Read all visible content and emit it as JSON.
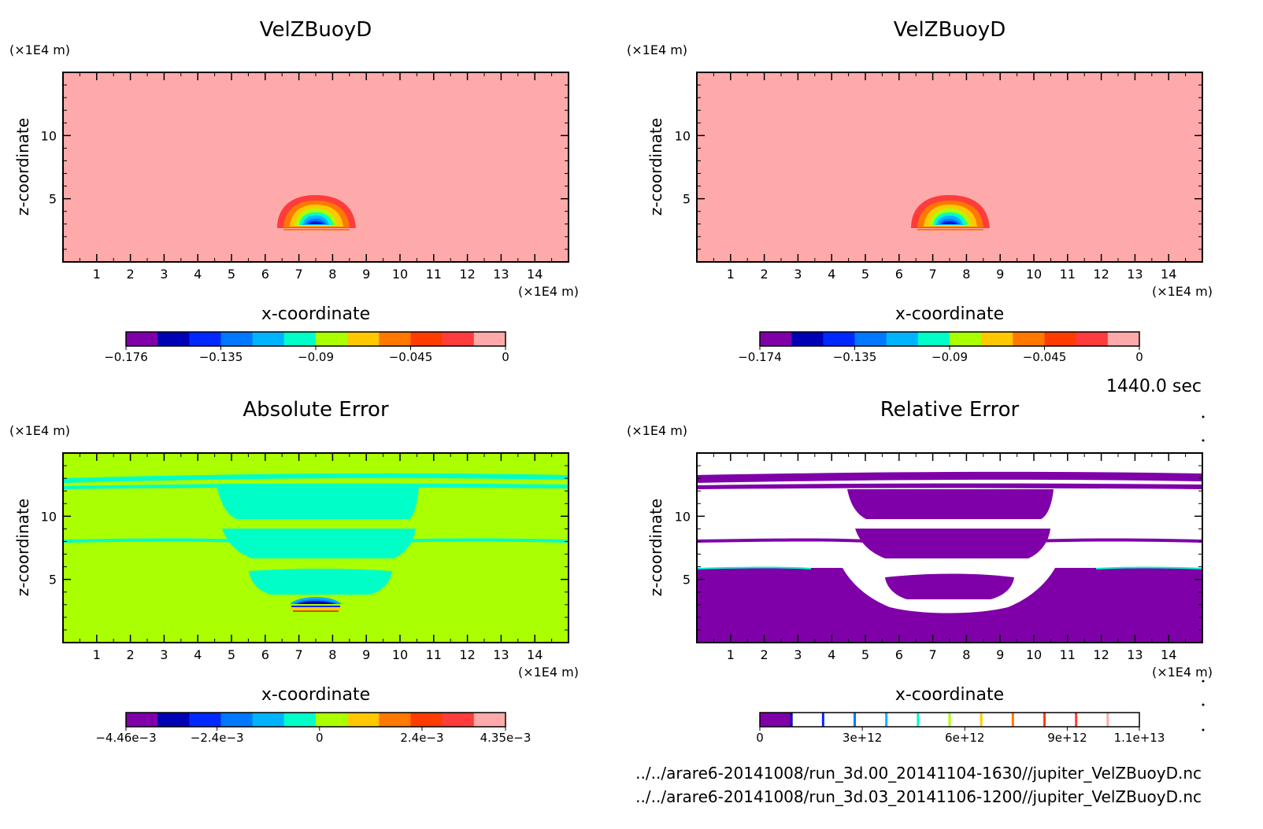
{
  "chart_data": [
    {
      "type": "heatmap",
      "title": "VelZBuoyD",
      "xlabel": "x-coordinate",
      "ylabel": "z-coordinate",
      "x_unit": "(×1E4 m)",
      "y_unit": "(×1E4 m)",
      "xticks": [
        "1",
        "2",
        "3",
        "4",
        "5",
        "6",
        "7",
        "8",
        "9",
        "10",
        "11",
        "12",
        "13",
        "14"
      ],
      "yticks": [
        "5",
        "10"
      ],
      "xlim": [
        0,
        15
      ],
      "ylim": [
        0,
        15
      ],
      "colorbar": {
        "colors": [
          "#7f00a8",
          "#0000b4",
          "#0028ff",
          "#0078ff",
          "#00b4ff",
          "#00ffc8",
          "#aaff00",
          "#ffc800",
          "#ff7800",
          "#ff3c00",
          "#ff3c3c",
          "#ffaaaa"
        ],
        "labels": [
          "−0.176",
          "−0.135",
          "−0.09",
          "−0.045",
          "0"
        ],
        "label_positions": [
          0,
          0.25,
          0.5,
          0.75,
          1.0
        ]
      }
    },
    {
      "type": "heatmap",
      "title": "VelZBuoyD",
      "xlabel": "x-coordinate",
      "ylabel": "z-coordinate",
      "x_unit": "(×1E4 m)",
      "y_unit": "(×1E4 m)",
      "xticks": [
        "1",
        "2",
        "3",
        "4",
        "5",
        "6",
        "7",
        "8",
        "9",
        "10",
        "11",
        "12",
        "13",
        "14"
      ],
      "yticks": [
        "5",
        "10"
      ],
      "xlim": [
        0,
        15
      ],
      "ylim": [
        0,
        15
      ],
      "colorbar": {
        "colors": [
          "#7f00a8",
          "#0000b4",
          "#0028ff",
          "#0078ff",
          "#00b4ff",
          "#00ffc8",
          "#aaff00",
          "#ffc800",
          "#ff7800",
          "#ff3c00",
          "#ff3c3c",
          "#ffaaaa"
        ],
        "labels": [
          "−0.174",
          "−0.135",
          "−0.09",
          "−0.045",
          "0"
        ],
        "label_positions": [
          0,
          0.25,
          0.5,
          0.75,
          1.0
        ]
      }
    },
    {
      "type": "heatmap",
      "title": "Absolute Error",
      "xlabel": "x-coordinate",
      "ylabel": "z-coordinate",
      "x_unit": "(×1E4 m)",
      "y_unit": "(×1E4 m)",
      "xticks": [
        "1",
        "2",
        "3",
        "4",
        "5",
        "6",
        "7",
        "8",
        "9",
        "10",
        "11",
        "12",
        "13",
        "14"
      ],
      "yticks": [
        "5",
        "10"
      ],
      "xlim": [
        0,
        15
      ],
      "ylim": [
        0,
        15
      ],
      "colorbar": {
        "colors": [
          "#7f00a8",
          "#0000b4",
          "#0028ff",
          "#0078ff",
          "#00b4ff",
          "#00ffc8",
          "#aaff00",
          "#ffc800",
          "#ff7800",
          "#ff3c00",
          "#ff3c3c",
          "#ffaaaa"
        ],
        "labels": [
          "−4.46e−3",
          "−2.4e−3",
          "0",
          "2.4e−3",
          "4.35e−3"
        ],
        "label_positions": [
          0,
          0.24,
          0.51,
          0.78,
          1.0
        ]
      }
    },
    {
      "type": "heatmap",
      "title": "Relative Error",
      "xlabel": "x-coordinate",
      "ylabel": "z-coordinate",
      "x_unit": "(×1E4 m)",
      "y_unit": "(×1E4 m)",
      "xticks": [
        "1",
        "2",
        "3",
        "4",
        "5",
        "6",
        "7",
        "8",
        "9",
        "10",
        "11",
        "12",
        "13",
        "14"
      ],
      "yticks": [
        "5",
        "10"
      ],
      "xlim": [
        0,
        15
      ],
      "ylim": [
        0,
        15
      ],
      "colorbar": {
        "style": "lines",
        "fill_color": "#7f00a8",
        "line_colors": [
          "#0000b4",
          "#0028ff",
          "#0078ff",
          "#00b4ff",
          "#00ffc8",
          "#aaff00",
          "#ffc800",
          "#ff7800",
          "#ff3c00",
          "#ff3c3c",
          "#ffaaaa"
        ],
        "labels": [
          "0",
          "3e+12",
          "6e+12",
          "9e+12",
          "1.1e+13"
        ],
        "label_positions": [
          0,
          0.27,
          0.54,
          0.81,
          1.0
        ]
      }
    }
  ],
  "time_label": "1440.0 sec",
  "files": [
    "../../arare6-20141008/run_3d.00_20141104-1630//jupiter_VelZBuoyD.nc",
    "../../arare6-20141008/run_3d.03_20141106-1200//jupiter_VelZBuoyD.nc"
  ],
  "colors": {
    "pink_background": "#ffaaaa",
    "lime_background": "#aaff00",
    "cyan": "#00ffc8",
    "purple": "#7f00a8"
  }
}
